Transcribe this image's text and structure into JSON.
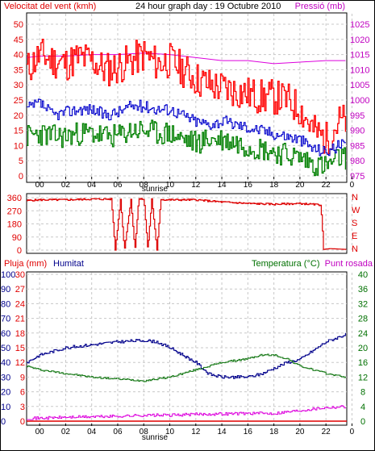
{
  "header": {
    "wind_title": "Velocitat del vent (kmh)",
    "title": "24 hour graph day : 19 Octubre 2010",
    "pressure_title": "Pressió (mb)"
  },
  "colors": {
    "gust": "#ff0000",
    "avg_wind": "#0000cc",
    "min_wind": "#008000",
    "pressure": "#dd00dd",
    "direction": "#dd0000",
    "humidity": "#00008b",
    "temperature": "#1e7d1e",
    "dewpoint": "#dd00dd",
    "rain": "#e00000"
  },
  "chart_data": [
    {
      "type": "line",
      "x_tick_labels": [
        "00",
        "02",
        "04",
        "06",
        "08",
        "10",
        "12",
        "14",
        "16",
        "18",
        "20",
        "22",
        "0"
      ],
      "sunrise_label": "sunrise",
      "y_left": {
        "label": "Velocitat del vent (kmh)",
        "ticks": [
          0,
          5,
          10,
          15,
          20,
          25,
          30,
          35,
          40,
          45,
          50
        ],
        "range": [
          0,
          50
        ]
      },
      "y_right": {
        "label": "Pressió (mb)",
        "ticks": [
          975,
          980,
          985,
          990,
          995,
          1000,
          1005,
          1010,
          1015,
          1020,
          1025
        ],
        "range": [
          975,
          1025
        ]
      },
      "series": [
        {
          "name": "gust",
          "hours": [
            -1,
            0,
            1,
            2,
            3,
            4,
            5,
            6,
            7,
            8,
            9,
            10,
            11,
            12,
            13,
            14,
            15,
            16,
            17,
            18,
            19,
            20,
            21,
            22,
            23
          ],
          "values": [
            35,
            40,
            38,
            37,
            39,
            38,
            35,
            36,
            38,
            40,
            37,
            38,
            35,
            32,
            30,
            29,
            28,
            27,
            26,
            26,
            25,
            22,
            15,
            12,
            18
          ]
        },
        {
          "name": "average",
          "hours": [
            -1,
            0,
            1,
            2,
            3,
            4,
            5,
            6,
            7,
            8,
            9,
            10,
            11,
            12,
            13,
            14,
            15,
            16,
            17,
            18,
            19,
            20,
            21,
            22,
            23
          ],
          "values": [
            22,
            24,
            20,
            21,
            22,
            22,
            20,
            21,
            23,
            23,
            22,
            22,
            20,
            18,
            17,
            18,
            17,
            16,
            15,
            14,
            13,
            12,
            9,
            8,
            10
          ]
        },
        {
          "name": "minimum",
          "hours": [
            -1,
            0,
            1,
            2,
            3,
            4,
            5,
            6,
            7,
            8,
            9,
            10,
            11,
            12,
            13,
            14,
            15,
            16,
            17,
            18,
            19,
            20,
            21,
            22,
            23
          ],
          "values": [
            13,
            14,
            13,
            13,
            14,
            14,
            13,
            13,
            15,
            15,
            14,
            14,
            12,
            11,
            12,
            12,
            11,
            10,
            9,
            8,
            7,
            6,
            4,
            3,
            6
          ]
        },
        {
          "name": "pressure",
          "hours": [
            -1,
            0,
            2,
            4,
            6,
            8,
            10,
            12,
            14,
            16,
            18,
            20,
            22,
            23.5
          ],
          "values": [
            1014,
            1014.5,
            1014.5,
            1015,
            1015,
            1015.5,
            1015,
            1014,
            1013,
            1013,
            1012,
            1012.5,
            1013,
            1013
          ]
        }
      ]
    },
    {
      "type": "line",
      "y_left": {
        "ticks": [
          0,
          90,
          180,
          270,
          360
        ],
        "range": [
          0,
          360
        ]
      },
      "direction_labels": [
        "N",
        "W",
        "S",
        "E",
        "N"
      ],
      "series": [
        {
          "name": "direction",
          "hours": [
            -1,
            0,
            2,
            4,
            5.5,
            5.8,
            6.2,
            6.5,
            7,
            7.3,
            7.6,
            8,
            8.3,
            8.6,
            9,
            9.3,
            9.6,
            10,
            12,
            14,
            16,
            18,
            20,
            21.6,
            21.8,
            22.3,
            23.5
          ],
          "values": [
            340,
            345,
            345,
            350,
            350,
            0,
            350,
            0,
            350,
            0,
            350,
            350,
            0,
            350,
            0,
            350,
            345,
            345,
            345,
            330,
            320,
            315,
            320,
            310,
            5,
            10,
            5
          ]
        }
      ]
    },
    {
      "type": "line",
      "titles": {
        "rain": "Pluja (mm)",
        "humidity": "Humitat",
        "temperature": "Temperatura (°C)",
        "dewpoint": "Punt rosada"
      },
      "sunrise_label": "sunrise",
      "x_tick_labels": [
        "00",
        "02",
        "04",
        "06",
        "08",
        "10",
        "12",
        "14",
        "16",
        "18",
        "20",
        "22",
        "0"
      ],
      "y_rain": {
        "ticks": [
          0,
          10,
          20,
          30,
          40,
          50,
          60,
          70,
          80,
          90,
          100
        ],
        "range": [
          0,
          100
        ]
      },
      "y_humidity": {
        "ticks": [
          0,
          3,
          6,
          9,
          12,
          15,
          18,
          21,
          24,
          27,
          30
        ],
        "range": [
          0,
          30
        ]
      },
      "y_temp": {
        "ticks": [
          0,
          4,
          8,
          12,
          16,
          20,
          24,
          28,
          32,
          36,
          40
        ],
        "range": [
          0,
          40
        ]
      },
      "series": [
        {
          "name": "humidity",
          "hours": [
            -1,
            0,
            2,
            4,
            6,
            8,
            9,
            10,
            11,
            12,
            13,
            14,
            16,
            17,
            18,
            19,
            20,
            21,
            22,
            23.5
          ],
          "values": [
            40,
            45,
            50,
            52,
            54,
            55,
            54,
            50,
            45,
            40,
            32,
            30,
            30,
            32,
            36,
            40,
            42,
            48,
            54,
            59
          ]
        },
        {
          "name": "temperature",
          "hours": [
            -1,
            0,
            2,
            4,
            6,
            8,
            10,
            12,
            14,
            16,
            17,
            18,
            19,
            20,
            21,
            22,
            23.5
          ],
          "values": [
            15,
            14,
            13,
            12,
            11.5,
            11,
            12,
            14,
            16,
            17,
            18,
            18,
            17,
            15,
            14,
            13,
            12
          ]
        },
        {
          "name": "dewpoint",
          "hours": [
            -1,
            0,
            2,
            4,
            6,
            8,
            10,
            12,
            14,
            16,
            18,
            20,
            22,
            23.5
          ],
          "values": [
            0.6,
            0.6,
            0.8,
            0.9,
            1.0,
            1.2,
            1.2,
            1.4,
            1.5,
            1.6,
            1.6,
            2.2,
            2.8,
            3.0
          ]
        }
      ]
    }
  ]
}
